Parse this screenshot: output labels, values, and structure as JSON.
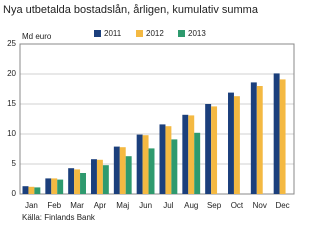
{
  "chart_data": {
    "type": "bar",
    "title": "Nya utbetalda bostadslån, årligen, kumulativ summa",
    "y_label": "Md euro",
    "source": "Källa: Finlands Bank",
    "categories": [
      "Jan",
      "Feb",
      "Mar",
      "Apr",
      "Maj",
      "Jun",
      "Jul",
      "Aug",
      "Sep",
      "Oct",
      "Nov",
      "Dec"
    ],
    "series": [
      {
        "name": "2011",
        "color": "#1b3f7c",
        "values": [
          1.3,
          2.6,
          4.3,
          5.8,
          7.9,
          9.9,
          11.6,
          13.2,
          15.0,
          16.9,
          18.6,
          20.1
        ]
      },
      {
        "name": "2012",
        "color": "#f4b942",
        "values": [
          1.2,
          2.6,
          4.1,
          5.7,
          7.8,
          9.8,
          11.3,
          13.1,
          14.6,
          16.3,
          18.0,
          19.1
        ]
      },
      {
        "name": "2013",
        "color": "#2e9a6e",
        "values": [
          1.1,
          2.4,
          3.5,
          4.8,
          6.3,
          7.6,
          9.1,
          10.2,
          null,
          null,
          null,
          null
        ]
      }
    ],
    "ylim": [
      0,
      25
    ],
    "yticks": [
      0,
      5,
      10,
      15,
      20,
      25
    ],
    "grid": true,
    "legend": "top"
  }
}
